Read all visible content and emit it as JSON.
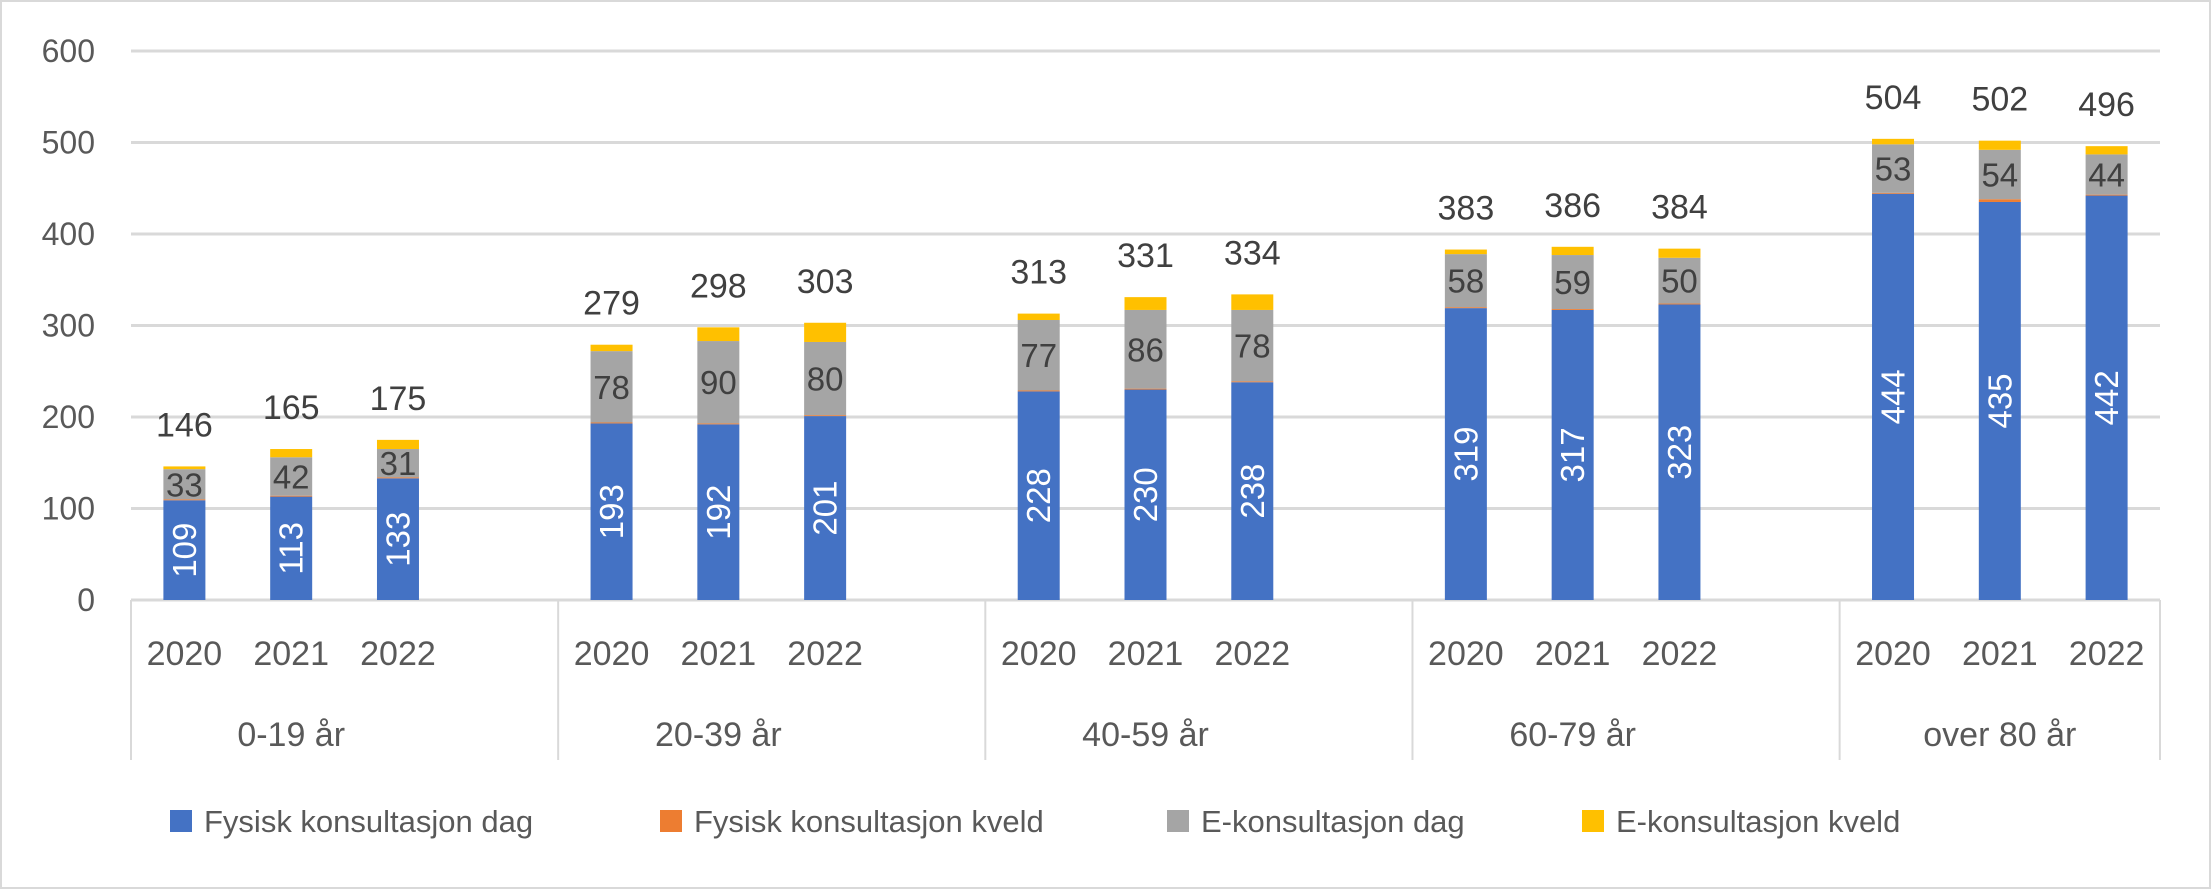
{
  "chart_data": {
    "type": "bar",
    "stacked": true,
    "title": "",
    "xlabel": "",
    "ylabel": "",
    "ylim": [
      0,
      600
    ],
    "yticks": [
      0,
      100,
      200,
      300,
      400,
      500,
      600
    ],
    "grid": true,
    "legend_position": "bottom",
    "groups": [
      {
        "label": "0-19 år",
        "years": [
          "2020",
          "2021",
          "2022"
        ]
      },
      {
        "label": "20-39 år",
        "years": [
          "2020",
          "2021",
          "2022"
        ]
      },
      {
        "label": "40-59 år",
        "years": [
          "2020",
          "2021",
          "2022"
        ]
      },
      {
        "label": "60-79 år",
        "years": [
          "2020",
          "2021",
          "2022"
        ]
      },
      {
        "label": "over 80 år",
        "years": [
          "2020",
          "2021",
          "2022"
        ]
      }
    ],
    "series": [
      {
        "name": "Fysisk konsultasjon dag",
        "color": "#4472C4",
        "labeled": true,
        "values": [
          109,
          113,
          133,
          193,
          192,
          201,
          228,
          230,
          238,
          319,
          317,
          323,
          444,
          435,
          442
        ]
      },
      {
        "name": "Fysisk konsultasjon kveld",
        "color": "#ED7D31",
        "labeled": false,
        "values": [
          1,
          1,
          1,
          1,
          1,
          1,
          1,
          1,
          1,
          1,
          1,
          1,
          1,
          3,
          1
        ]
      },
      {
        "name": "E-konsultasjon dag",
        "color": "#A5A5A5",
        "labeled": true,
        "values": [
          33,
          42,
          31,
          78,
          90,
          80,
          77,
          86,
          78,
          58,
          59,
          50,
          53,
          54,
          44
        ]
      },
      {
        "name": "E-konsultasjon kveld",
        "color": "#FFC000",
        "labeled": false,
        "values": [
          3,
          9,
          10,
          7,
          15,
          21,
          7,
          14,
          17,
          5,
          9,
          10,
          6,
          10,
          9
        ]
      }
    ],
    "totals": [
      146,
      165,
      175,
      279,
      298,
      303,
      313,
      331,
      334,
      383,
      386,
      384,
      504,
      502,
      496
    ]
  }
}
